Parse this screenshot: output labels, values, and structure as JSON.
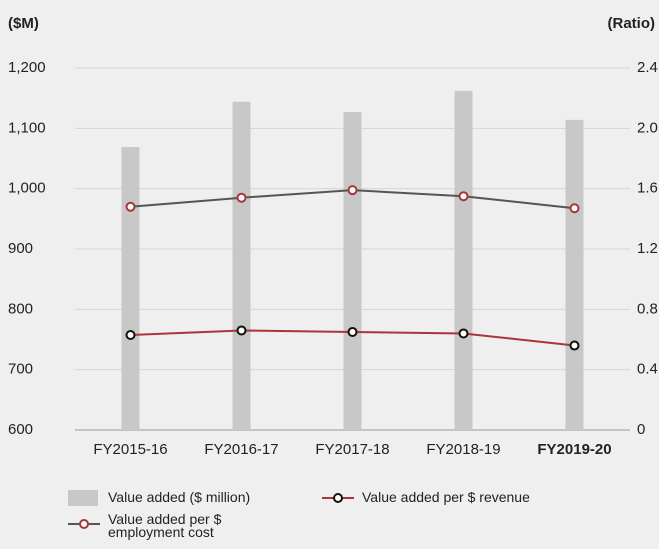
{
  "chart_data": {
    "type": "bar-line",
    "ylabel": "($M)",
    "y2label": "(Ratio)",
    "categories": [
      "FY2015-16",
      "FY2016-17",
      "FY2017-18",
      "FY2018-19",
      "FY2019-20"
    ],
    "series": [
      {
        "name": "Value added ($ million)",
        "type": "bar",
        "color": "#c8c8c8",
        "values": [
          1069,
          1144,
          1127,
          1162,
          1114
        ]
      },
      {
        "name": "Value added per $ revenue",
        "type": "line",
        "axis": "y2",
        "color": "#a8353a",
        "marker_color": "#111111",
        "values": [
          0.63,
          0.66,
          0.65,
          0.64,
          0.56
        ]
      },
      {
        "name": "Value added per $ employment cost",
        "type": "line",
        "axis": "y2",
        "color": "#555555",
        "marker_color": "#a8353a",
        "values": [
          1.48,
          1.54,
          1.59,
          1.55,
          1.47
        ]
      }
    ],
    "ylim": [
      600,
      1200
    ],
    "yticks": [
      600,
      700,
      800,
      900,
      {
        "value": 1000,
        "label": "1,000"
      },
      {
        "value": 1100,
        "label": "1,100"
      },
      {
        "value": 1200,
        "label": "1,200"
      }
    ],
    "y2lim": [
      0,
      2.4
    ],
    "y2ticks": [
      0,
      0.4,
      0.8,
      1.2,
      1.6,
      {
        "value": 2.0,
        "label": "2.0"
      },
      2.4
    ],
    "grid": true,
    "legend": "bottom"
  }
}
